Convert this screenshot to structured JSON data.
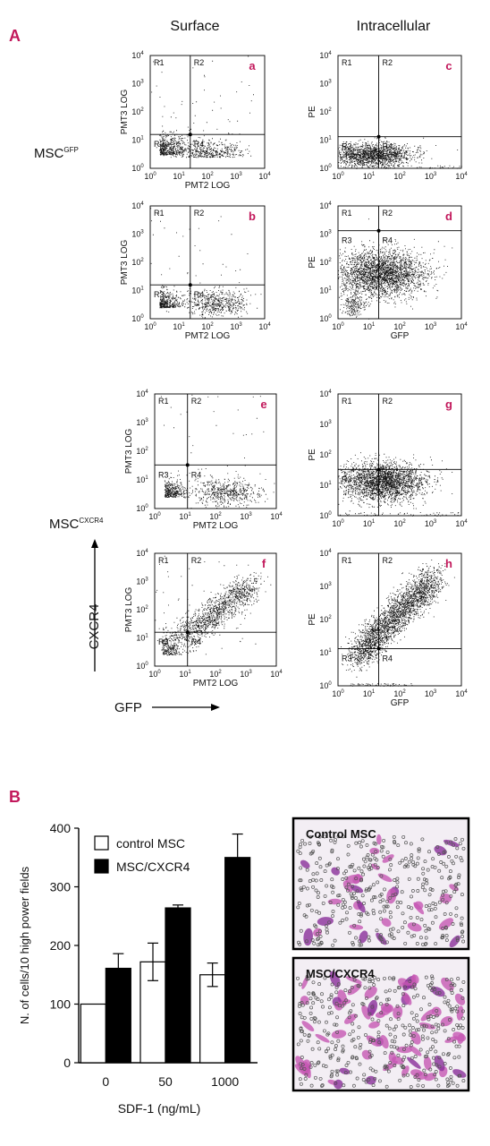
{
  "figure": {
    "label_A": "A",
    "label_B": "B",
    "col_surface": "Surface",
    "col_intracellular": "Intracellular",
    "row_gfp": "MSC",
    "row_gfp_sup": "GFP",
    "row_cxcr4": "MSC",
    "row_cxcr4_sup": "CXCR4",
    "arrow_y_label": "CXCR4",
    "arrow_x_label": "GFP"
  },
  "flow_panels": [
    {
      "id": "a",
      "letter": "a",
      "xlabel": "PMT2 LOG",
      "ylabel": "PMT3 LOG",
      "quad_labels": [
        "R1",
        "R2",
        "R3",
        "R4"
      ],
      "pattern": "low"
    },
    {
      "id": "b",
      "letter": "b",
      "xlabel": "PMT2 LOG",
      "ylabel": "PMT3 LOG",
      "quad_labels": [
        "R1",
        "R2",
        "R3",
        "R4"
      ],
      "pattern": "split"
    },
    {
      "id": "c",
      "letter": "c",
      "xlabel": "",
      "ylabel": "PE",
      "quad_labels": [
        "R1",
        "R2",
        "R3",
        "R4"
      ],
      "pattern": "intra_low"
    },
    {
      "id": "d",
      "letter": "d",
      "xlabel": "GFP",
      "ylabel": "PE",
      "quad_labels": [
        "R1",
        "R2",
        "R3",
        "R4"
      ],
      "pattern": "intra_high"
    },
    {
      "id": "e",
      "letter": "e",
      "xlabel": "PMT2 LOG",
      "ylabel": "PMT3 LOG",
      "quad_labels": [
        "R1",
        "R2",
        "R3",
        "R4"
      ],
      "pattern": "split"
    },
    {
      "id": "f",
      "letter": "f",
      "xlabel": "PMT2 LOG",
      "ylabel": "PMT3 LOG",
      "quad_labels": [
        "R1",
        "R2",
        "R3",
        "R4"
      ],
      "pattern": "diag"
    },
    {
      "id": "g",
      "letter": "g",
      "xlabel": "",
      "ylabel": "PE",
      "quad_labels": [
        "R1",
        "R2",
        "R3",
        "R4"
      ],
      "pattern": "intra_mid"
    },
    {
      "id": "h",
      "letter": "h",
      "xlabel": "GFP",
      "ylabel": "PE",
      "quad_labels": [
        "R1",
        "R2",
        "R3",
        "R4"
      ],
      "pattern": "diag_dense"
    }
  ],
  "tick_labels": {
    "bases": [
      "10",
      "10",
      "10",
      "10",
      "10"
    ],
    "exps": [
      "0",
      "1",
      "2",
      "3",
      "4"
    ]
  },
  "chart_data": {
    "type": "bar",
    "categories": [
      "0",
      "50",
      "1000"
    ],
    "series": [
      {
        "name": "control MSC",
        "values": [
          100,
          172,
          150
        ],
        "errors": [
          0,
          32,
          20
        ],
        "color": "#ffffff"
      },
      {
        "name": "MSC/CXCR4",
        "values": [
          161,
          264,
          350
        ],
        "errors": [
          25,
          5,
          40
        ],
        "color": "#000000"
      }
    ],
    "xlabel": "SDF-1 (ng/mL)",
    "ylabel": "N. of cells/10 high power fields",
    "ylim": [
      0,
      400
    ],
    "yticks": [
      "0",
      "100",
      "200",
      "300",
      "400"
    ],
    "legend": "top-left"
  },
  "micrographs": [
    {
      "label": "Control MSC",
      "density": "low"
    },
    {
      "label": "MSC/CXCR4",
      "density": "high"
    }
  ]
}
